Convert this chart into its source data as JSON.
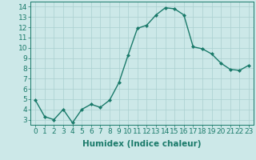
{
  "x": [
    0,
    1,
    2,
    3,
    4,
    5,
    6,
    7,
    8,
    9,
    10,
    11,
    12,
    13,
    14,
    15,
    16,
    17,
    18,
    19,
    20,
    21,
    22,
    23
  ],
  "y": [
    4.9,
    3.3,
    3.0,
    4.0,
    2.7,
    4.0,
    4.5,
    4.2,
    4.9,
    6.6,
    9.3,
    11.9,
    12.2,
    13.2,
    13.9,
    13.8,
    13.2,
    10.1,
    9.9,
    9.4,
    8.5,
    7.9,
    7.8,
    8.3
  ],
  "line_color": "#1a7a6a",
  "marker": "D",
  "marker_size": 2.0,
  "bg_color": "#cce8e8",
  "grid_color": "#aacfcf",
  "xlabel": "Humidex (Indice chaleur)",
  "ylim": [
    2.5,
    14.5
  ],
  "xlim": [
    -0.5,
    23.5
  ],
  "yticks": [
    3,
    4,
    5,
    6,
    7,
    8,
    9,
    10,
    11,
    12,
    13,
    14
  ],
  "xticks": [
    0,
    1,
    2,
    3,
    4,
    5,
    6,
    7,
    8,
    9,
    10,
    11,
    12,
    13,
    14,
    15,
    16,
    17,
    18,
    19,
    20,
    21,
    22,
    23
  ],
  "xlabel_fontsize": 7.5,
  "tick_fontsize": 6.5,
  "line_width": 1.0
}
